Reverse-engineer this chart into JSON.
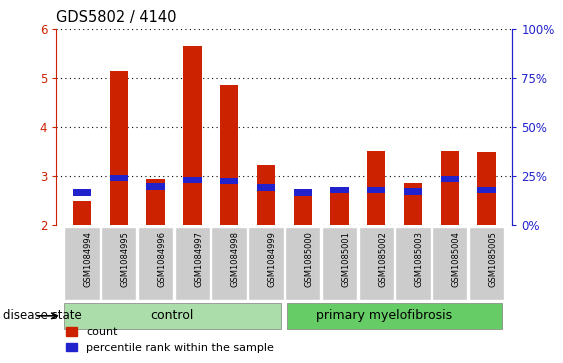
{
  "title": "GDS5802 / 4140",
  "samples": [
    "GSM1084994",
    "GSM1084995",
    "GSM1084996",
    "GSM1084997",
    "GSM1084998",
    "GSM1084999",
    "GSM1085000",
    "GSM1085001",
    "GSM1085002",
    "GSM1085003",
    "GSM1085004",
    "GSM1085005"
  ],
  "count_values": [
    2.5,
    5.15,
    2.93,
    5.65,
    4.85,
    3.22,
    2.65,
    2.78,
    3.52,
    2.85,
    3.52,
    3.5
  ],
  "blue_bar_heights": [
    0.13,
    0.13,
    0.13,
    0.13,
    0.13,
    0.13,
    0.13,
    0.13,
    0.13,
    0.13,
    0.13,
    0.13
  ],
  "blue_bar_positions": [
    2.6,
    2.9,
    2.72,
    2.85,
    2.83,
    2.7,
    2.6,
    2.65,
    2.65,
    2.62,
    2.87,
    2.65
  ],
  "bar_bottom": 2.0,
  "ylim_left": [
    2.0,
    6.0
  ],
  "ylim_right": [
    0,
    100
  ],
  "yticks_left": [
    2,
    3,
    4,
    5,
    6
  ],
  "yticks_right": [
    0,
    25,
    50,
    75,
    100
  ],
  "bar_color_red": "#cc2200",
  "bar_color_blue": "#2222cc",
  "control_samples": 6,
  "control_label": "control",
  "disease_label": "primary myelofibrosis",
  "disease_state_label": "disease state",
  "legend_count": "count",
  "legend_percentile": "percentile rank within the sample",
  "control_bg": "#aaddaa",
  "disease_bg": "#66cc66",
  "tick_label_bg": "#cccccc",
  "plot_bg": "#ffffff",
  "title_fontsize": 10.5
}
